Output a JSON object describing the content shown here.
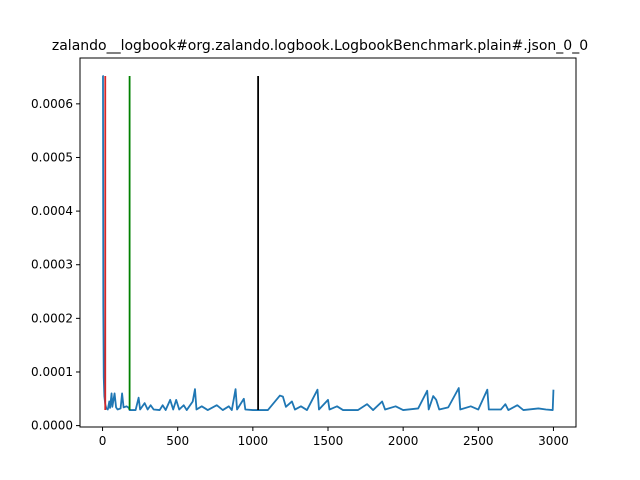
{
  "chart_data": {
    "type": "line",
    "title": "zalando__logbook#org.zalando.logbook.LogbookBenchmark.plain#.json_0_0",
    "xlabel": "",
    "ylabel": "",
    "xlim": [
      -150,
      3150
    ],
    "ylim": [
      -2.6e-06,
      0.0006855
    ],
    "x_ticks": [
      0,
      500,
      1000,
      1500,
      2000,
      2500,
      3000
    ],
    "x_tick_labels": [
      "0",
      "500",
      "1000",
      "1500",
      "2000",
      "2500",
      "3000"
    ],
    "y_ticks": [
      0.0,
      0.0001,
      0.0002,
      0.0003,
      0.0004,
      0.0005,
      0.0006
    ],
    "y_tick_labels": [
      "0.0000",
      "0.0001",
      "0.0002",
      "0.0003",
      "0.0004",
      "0.0005",
      "0.0006"
    ],
    "grid": false,
    "series": [
      {
        "color": "#1f77b4",
        "points": [
          [
            0,
            0.000652
          ],
          [
            3,
            0.000652
          ],
          [
            5,
            0.00022
          ],
          [
            8,
            9e-05
          ],
          [
            12,
            5.5e-05
          ],
          [
            18,
            4e-05
          ],
          [
            25,
            3.2e-05
          ],
          [
            35,
            3e-05
          ],
          [
            45,
            4.5e-05
          ],
          [
            50,
            3.3e-05
          ],
          [
            60,
            6e-05
          ],
          [
            65,
            3.5e-05
          ],
          [
            80,
            6e-05
          ],
          [
            90,
            3.4e-05
          ],
          [
            100,
            3e-05
          ],
          [
            120,
            3.2e-05
          ],
          [
            130,
            6e-05
          ],
          [
            140,
            3.4e-05
          ],
          [
            160,
            3.6e-05
          ],
          [
            175,
            3.3e-05
          ],
          [
            180,
            2.9e-05
          ],
          [
            220,
            2.9e-05
          ],
          [
            240,
            5.2e-05
          ],
          [
            250,
            3e-05
          ],
          [
            280,
            4.2e-05
          ],
          [
            300,
            3e-05
          ],
          [
            320,
            3.8e-05
          ],
          [
            340,
            3e-05
          ],
          [
            380,
            2.9e-05
          ],
          [
            400,
            3.8e-05
          ],
          [
            420,
            2.9e-05
          ],
          [
            450,
            4.8e-05
          ],
          [
            470,
            3e-05
          ],
          [
            490,
            4.8e-05
          ],
          [
            510,
            3e-05
          ],
          [
            540,
            3.8e-05
          ],
          [
            560,
            2.9e-05
          ],
          [
            600,
            4.5e-05
          ],
          [
            615,
            6.8e-05
          ],
          [
            625,
            3e-05
          ],
          [
            660,
            3.6e-05
          ],
          [
            700,
            2.9e-05
          ],
          [
            760,
            3.8e-05
          ],
          [
            800,
            2.9e-05
          ],
          [
            840,
            3.6e-05
          ],
          [
            860,
            2.9e-05
          ],
          [
            885,
            6.8e-05
          ],
          [
            895,
            3e-05
          ],
          [
            940,
            5e-05
          ],
          [
            950,
            3e-05
          ],
          [
            1000,
            2.9e-05
          ],
          [
            1100,
            2.9e-05
          ],
          [
            1180,
            5.6e-05
          ],
          [
            1200,
            5.4e-05
          ],
          [
            1220,
            3.5e-05
          ],
          [
            1260,
            4.5e-05
          ],
          [
            1280,
            3e-05
          ],
          [
            1320,
            3.6e-05
          ],
          [
            1360,
            2.9e-05
          ],
          [
            1430,
            6.7e-05
          ],
          [
            1440,
            3e-05
          ],
          [
            1500,
            4.8e-05
          ],
          [
            1510,
            3e-05
          ],
          [
            1560,
            3.6e-05
          ],
          [
            1600,
            2.9e-05
          ],
          [
            1700,
            2.9e-05
          ],
          [
            1760,
            4e-05
          ],
          [
            1800,
            2.9e-05
          ],
          [
            1860,
            4.5e-05
          ],
          [
            1880,
            3e-05
          ],
          [
            1950,
            3.6e-05
          ],
          [
            2000,
            2.9e-05
          ],
          [
            2100,
            3.2e-05
          ],
          [
            2160,
            6.5e-05
          ],
          [
            2170,
            3e-05
          ],
          [
            2200,
            5.5e-05
          ],
          [
            2220,
            4.8e-05
          ],
          [
            2240,
            3e-05
          ],
          [
            2300,
            3.4e-05
          ],
          [
            2370,
            7e-05
          ],
          [
            2380,
            3e-05
          ],
          [
            2450,
            3.6e-05
          ],
          [
            2500,
            3e-05
          ],
          [
            2560,
            6.7e-05
          ],
          [
            2570,
            3e-05
          ],
          [
            2650,
            3e-05
          ],
          [
            2680,
            4e-05
          ],
          [
            2700,
            2.9e-05
          ],
          [
            2760,
            3.8e-05
          ],
          [
            2800,
            2.9e-05
          ],
          [
            2900,
            3.2e-05
          ],
          [
            2950,
            3e-05
          ],
          [
            2995,
            2.9e-05
          ],
          [
            3000,
            6.7e-05
          ]
        ]
      }
    ],
    "vlines": [
      {
        "x": 18,
        "ymin": 2.9e-05,
        "ymax": 0.000652,
        "color": "#d62728"
      },
      {
        "x": 180,
        "ymin": 2.9e-05,
        "ymax": 0.000652,
        "color": "#008000"
      },
      {
        "x": 1035,
        "ymin": 2.9e-05,
        "ymax": 0.000652,
        "color": "#000000"
      }
    ]
  }
}
